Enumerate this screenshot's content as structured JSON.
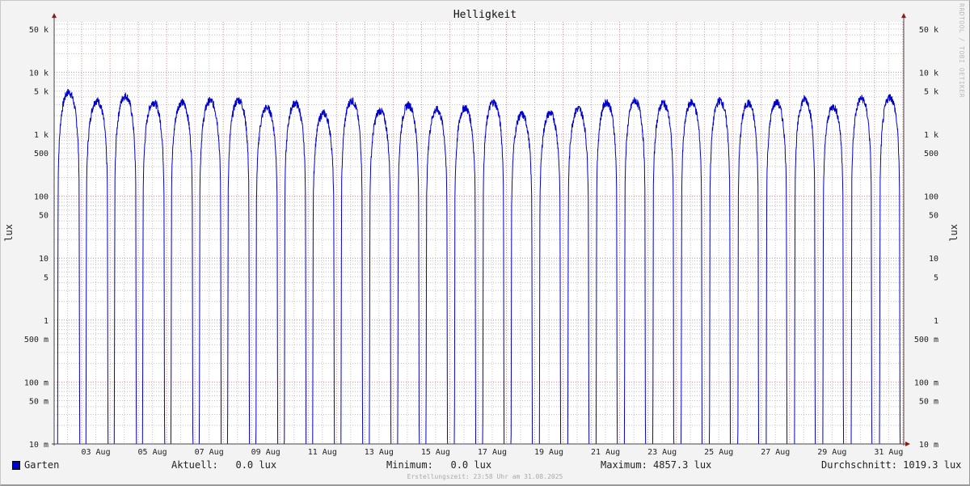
{
  "chart_data": {
    "type": "line",
    "title": "Helligkeit",
    "ylabel": "lux",
    "y_scale": "log",
    "ylim": [
      0.01,
      65000
    ],
    "y_ticks": [
      {
        "value": 50000,
        "label": "50 k"
      },
      {
        "value": 10000,
        "label": "10 k"
      },
      {
        "value": 5000,
        "label": "5 k"
      },
      {
        "value": 1000,
        "label": "1 k"
      },
      {
        "value": 500,
        "label": "500"
      },
      {
        "value": 100,
        "label": "100"
      },
      {
        "value": 50,
        "label": "50"
      },
      {
        "value": 10,
        "label": "10"
      },
      {
        "value": 5,
        "label": "5"
      },
      {
        "value": 1,
        "label": "1"
      },
      {
        "value": 0.5,
        "label": "500 m"
      },
      {
        "value": 0.1,
        "label": "100 m"
      },
      {
        "value": 0.05,
        "label": "50 m"
      },
      {
        "value": 0.01,
        "label": "10 m"
      }
    ],
    "x_range": [
      "2025-08-02 00:00",
      "2025-08-31 23:58"
    ],
    "x_tick_labels": [
      "03 Aug",
      "05 Aug",
      "07 Aug",
      "09 Aug",
      "11 Aug",
      "13 Aug",
      "15 Aug",
      "17 Aug",
      "19 Aug",
      "21 Aug",
      "23 Aug",
      "25 Aug",
      "27 Aug",
      "29 Aug",
      "31 Aug"
    ],
    "grid": true,
    "series": [
      {
        "name": "Garten",
        "color": "#0000cc",
        "daily_peak_lux": [
          {
            "date": "02 Aug",
            "peak": 4800
          },
          {
            "date": "03 Aug",
            "peak": 3500
          },
          {
            "date": "04 Aug",
            "peak": 4200
          },
          {
            "date": "05 Aug",
            "peak": 3300
          },
          {
            "date": "06 Aug",
            "peak": 3300
          },
          {
            "date": "07 Aug",
            "peak": 3500
          },
          {
            "date": "08 Aug",
            "peak": 3600
          },
          {
            "date": "09 Aug",
            "peak": 2700
          },
          {
            "date": "10 Aug",
            "peak": 3200
          },
          {
            "date": "11 Aug",
            "peak": 2200
          },
          {
            "date": "12 Aug",
            "peak": 3500
          },
          {
            "date": "13 Aug",
            "peak": 2400
          },
          {
            "date": "14 Aug",
            "peak": 3000
          },
          {
            "date": "15 Aug",
            "peak": 2500
          },
          {
            "date": "16 Aug",
            "peak": 2700
          },
          {
            "date": "17 Aug",
            "peak": 3300
          },
          {
            "date": "18 Aug",
            "peak": 2100
          },
          {
            "date": "19 Aug",
            "peak": 2200
          },
          {
            "date": "20 Aug",
            "peak": 2600
          },
          {
            "date": "21 Aug",
            "peak": 3300
          },
          {
            "date": "22 Aug",
            "peak": 3500
          },
          {
            "date": "23 Aug",
            "peak": 3200
          },
          {
            "date": "24 Aug",
            "peak": 3300
          },
          {
            "date": "25 Aug",
            "peak": 3500
          },
          {
            "date": "26 Aug",
            "peak": 3200
          },
          {
            "date": "27 Aug",
            "peak": 3300
          },
          {
            "date": "28 Aug",
            "peak": 3700
          },
          {
            "date": "29 Aug",
            "peak": 2800
          },
          {
            "date": "30 Aug",
            "peak": 3800
          },
          {
            "date": "31 Aug",
            "peak": 4000
          }
        ],
        "night_value_lux": 0
      }
    ]
  },
  "legend": {
    "series_name": "Garten",
    "current": "Aktuell:   0.0 lux",
    "minimum": "Minimum:   0.0 lux",
    "maximum": "Maximum: 4857.3 lux",
    "average": "Durchschnitt: 1019.3 lux"
  },
  "watermark": "RRDTOOL / TOBI OETIKER",
  "footer": "Erstellungszeit: 23:58 Uhr am 31.08.2025",
  "colors": {
    "line": "#0000cc",
    "major_grid": "#e08080",
    "minor_grid": "#c0c0c0",
    "axis_arrow": "#8b1a1a"
  }
}
